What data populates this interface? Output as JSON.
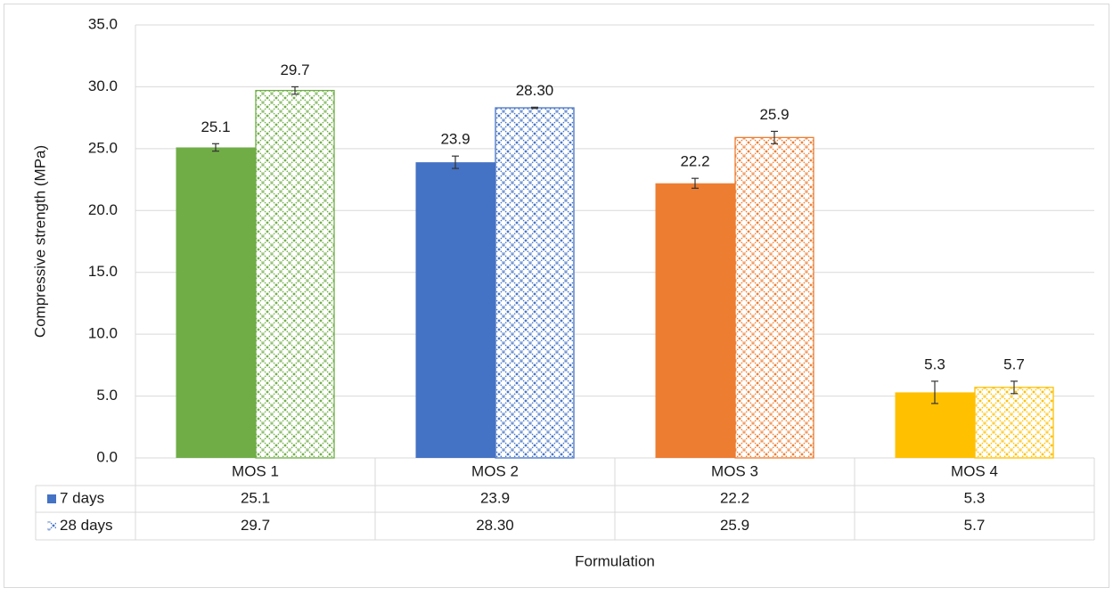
{
  "chart_data": {
    "type": "bar",
    "x_label": "Formulation",
    "y_label": "Compressive strength (MPa)",
    "categories": [
      "MOS 1",
      "MOS 2",
      "MOS 3",
      "MOS 4"
    ],
    "category_colors": [
      "#70ad47",
      "#4472c4",
      "#ed7d31",
      "#ffc000"
    ],
    "series": [
      {
        "name": "7 days",
        "color": "#4472c4",
        "pattern": "solid",
        "values": [
          25.1,
          23.9,
          22.2,
          5.3
        ],
        "errors": [
          0.3,
          0.5,
          0.4,
          0.9
        ]
      },
      {
        "name": "28 days",
        "color": "#4472c4",
        "pattern": "diamond-lattice",
        "values": [
          29.7,
          28.3,
          25.9,
          5.7
        ],
        "value_labels": [
          "29.7",
          "28.30",
          "25.9",
          "5.7"
        ],
        "errors": [
          0.3,
          0.05,
          0.5,
          0.5
        ]
      }
    ],
    "ylim": [
      0,
      35
    ],
    "yticks": [
      {
        "value": 0,
        "label": "0.0"
      },
      {
        "value": 5,
        "label": "5.0"
      },
      {
        "value": 10,
        "label": "10.0"
      },
      {
        "value": 15,
        "label": "15.0"
      },
      {
        "value": 20,
        "label": "20.0"
      },
      {
        "value": 25,
        "label": "25.0"
      },
      {
        "value": 30,
        "label": "30.0"
      },
      {
        "value": 35,
        "label": "35.0"
      }
    ],
    "grid": true,
    "data_table": true
  }
}
